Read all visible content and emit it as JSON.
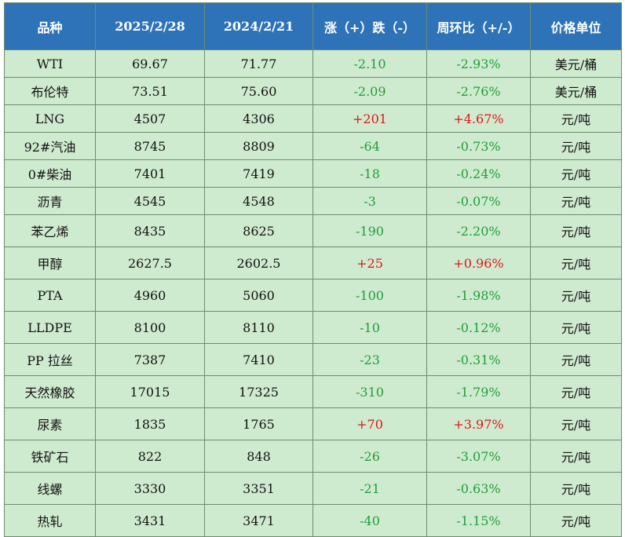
{
  "headers": [
    "品种",
    "2025/2/28",
    "2024/2/21",
    "涨（+）跌（-）",
    "周环比（+/-）",
    "价格单位"
  ],
  "colors": {
    "header_bg": "#2e73b8",
    "row_bg": "#cfebcf",
    "up": "#e31414",
    "down": "#1f9e3a"
  },
  "rows": [
    [
      "WTI",
      "69.67",
      "71.77",
      "-2.10",
      "-2.93%",
      "美元/桶"
    ],
    [
      "布伦特",
      "73.51",
      "75.60",
      "-2.09",
      "-2.76%",
      "美元/桶"
    ],
    [
      "LNG",
      "4507",
      "4306",
      "+201",
      "+4.67%",
      "元/吨"
    ],
    [
      "92#汽油",
      "8745",
      "8809",
      "-64",
      "-0.73%",
      "元/吨"
    ],
    [
      "0#柴油",
      "7401",
      "7419",
      "-18",
      "-0.24%",
      "元/吨"
    ],
    [
      "沥青",
      "4545",
      "4548",
      "-3",
      "-0.07%",
      "元/吨"
    ],
    [
      "苯乙烯",
      "8435",
      "8625",
      "-190",
      "-2.20%",
      "元/吨"
    ],
    [
      "甲醇",
      "2627.5",
      "2602.5",
      "+25",
      "+0.96%",
      "元/吨"
    ],
    [
      "PTA",
      "4960",
      "5060",
      "-100",
      "-1.98%",
      "元/吨"
    ],
    [
      "LLDPE",
      "8100",
      "8110",
      "-10",
      "-0.12%",
      "元/吨"
    ],
    [
      "PP 拉丝",
      "7387",
      "7410",
      "-23",
      "-0.31%",
      "元/吨"
    ],
    [
      "天然橡胶",
      "17015",
      "17325",
      "-310",
      "-1.79%",
      "元/吨"
    ],
    [
      "尿素",
      "1835",
      "1765",
      "+70",
      "+3.97%",
      "元/吨"
    ],
    [
      "铁矿石",
      "822",
      "848",
      "-26",
      "-3.07%",
      "元/吨"
    ],
    [
      "线螺",
      "3330",
      "3351",
      "-21",
      "-0.63%",
      "元/吨"
    ],
    [
      "热轧",
      "3431",
      "3471",
      "-40",
      "-1.15%",
      "元/吨"
    ]
  ]
}
